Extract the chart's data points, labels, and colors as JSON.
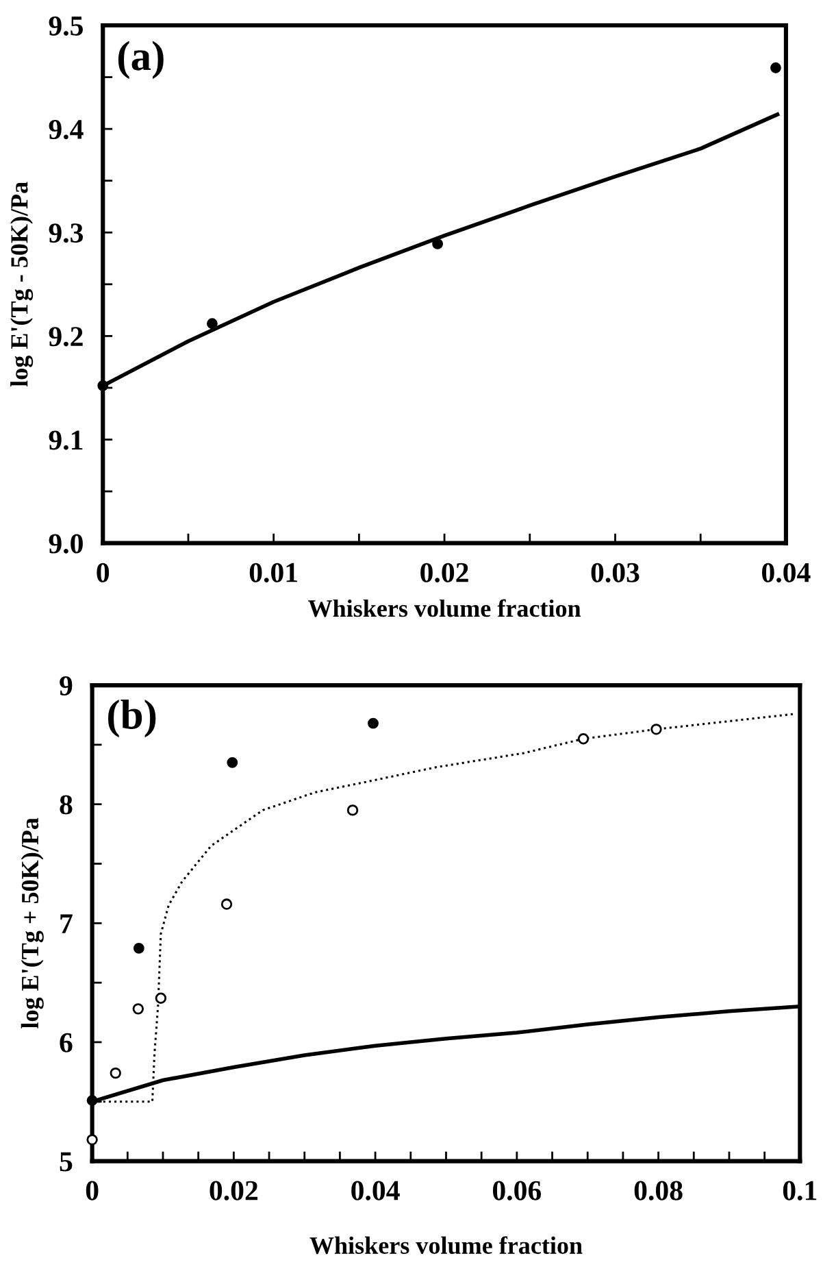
{
  "chart_data": [
    {
      "type": "scatter",
      "xlabel": "Whiskers volume fraction",
      "ylabel": "log E'(Tg - 50K)/Pa",
      "annotations": [
        "(a)"
      ],
      "xlim": [
        0,
        0.04
      ],
      "ylim": [
        9.0,
        9.5
      ],
      "xticks": [
        0,
        {
          "value": 0.005,
          "label": null
        },
        0.01,
        {
          "value": 0.015,
          "label": null
        },
        0.02,
        {
          "value": 0.025,
          "label": null
        },
        0.03,
        {
          "value": 0.035,
          "label": null
        },
        0.04
      ],
      "yticks": [
        {
          "value": 9.0,
          "label": "9.0"
        },
        {
          "value": 9.05,
          "label": null
        },
        9.1,
        {
          "value": 9.15,
          "label": null
        },
        9.2,
        {
          "value": 9.25,
          "label": null
        },
        9.3,
        {
          "value": 9.35,
          "label": null
        },
        9.4,
        {
          "value": 9.45,
          "label": null
        },
        9.5
      ],
      "grid": false,
      "series": [
        {
          "color": "#000000",
          "marker": "circle",
          "x": [
            0,
            0.0064,
            0.0196,
            0.0394
          ],
          "values": [
            9.152,
            9.212,
            9.289,
            9.459
          ]
        },
        {
          "type": "line",
          "color": "#000000",
          "line_style": "solid",
          "marker": "none",
          "x": [
            0,
            0.005,
            0.01,
            0.015,
            0.02,
            0.025,
            0.03,
            0.035,
            0.0395
          ],
          "values": [
            9.152,
            9.195,
            9.233,
            9.266,
            9.297,
            9.326,
            9.354,
            9.381,
            9.414
          ]
        }
      ]
    },
    {
      "type": "scatter",
      "xlabel": "Whiskers volume fraction",
      "ylabel": "log E'(Tg + 50K)/Pa",
      "annotations": [
        "(b)"
      ],
      "xlim": [
        0,
        0.1
      ],
      "ylim": [
        5,
        9
      ],
      "xticks": [
        0,
        {
          "value": 0.005,
          "label": null
        },
        {
          "value": 0.01,
          "label": null
        },
        {
          "value": 0.015,
          "label": null
        },
        0.02,
        {
          "value": 0.025,
          "label": null
        },
        {
          "value": 0.03,
          "label": null
        },
        {
          "value": 0.035,
          "label": null
        },
        0.04,
        {
          "value": 0.045,
          "label": null
        },
        {
          "value": 0.05,
          "label": null
        },
        {
          "value": 0.055,
          "label": null
        },
        0.06,
        {
          "value": 0.065,
          "label": null
        },
        {
          "value": 0.07,
          "label": null
        },
        {
          "value": 0.075,
          "label": null
        },
        0.08,
        {
          "value": 0.085,
          "label": null
        },
        {
          "value": 0.09,
          "label": null
        },
        {
          "value": 0.095,
          "label": null
        },
        0.1
      ],
      "yticks": [
        5,
        {
          "value": 5.5,
          "label": null
        },
        6,
        {
          "value": 6.5,
          "label": null
        },
        7,
        {
          "value": 7.5,
          "label": null
        },
        8,
        {
          "value": 8.5,
          "label": null
        },
        9
      ],
      "grid": false,
      "series": [
        {
          "color": "#000000",
          "marker": "circle",
          "x": [
            0,
            0.0066,
            0.0198,
            0.0397
          ],
          "values": [
            5.51,
            6.79,
            8.35,
            8.68
          ]
        },
        {
          "marker": "circle",
          "x": [
            0,
            0.0033,
            0.0065,
            0.0097,
            0.019,
            0.0368,
            0.0694,
            0.0797
          ],
          "values": [
            5.18,
            5.74,
            6.28,
            6.37,
            7.16,
            7.95,
            8.55,
            8.63
          ]
        },
        {
          "type": "line",
          "color": "#000000",
          "line_style": "solid",
          "marker": "none",
          "x": [
            0,
            0.01,
            0.02,
            0.03,
            0.04,
            0.05,
            0.06,
            0.07,
            0.08,
            0.09,
            0.1
          ],
          "values": [
            5.5,
            5.68,
            5.79,
            5.89,
            5.97,
            6.03,
            6.08,
            6.15,
            6.21,
            6.26,
            6.3
          ]
        },
        {
          "type": "line",
          "color": "#000000",
          "line_style": "dotted",
          "marker": "none",
          "x": [
            0,
            0.0085,
            0.0088,
            0.0093,
            0.0097,
            0.0108,
            0.0127,
            0.0168,
            0.0241,
            0.0315,
            0.0389,
            0.0485,
            0.061,
            0.0694,
            0.0797,
            0.0994
          ],
          "values": [
            5.5,
            5.5,
            5.9,
            6.3,
            6.91,
            7.15,
            7.35,
            7.65,
            7.95,
            8.1,
            8.19,
            8.31,
            8.43,
            8.55,
            8.63,
            8.76
          ]
        }
      ]
    }
  ]
}
